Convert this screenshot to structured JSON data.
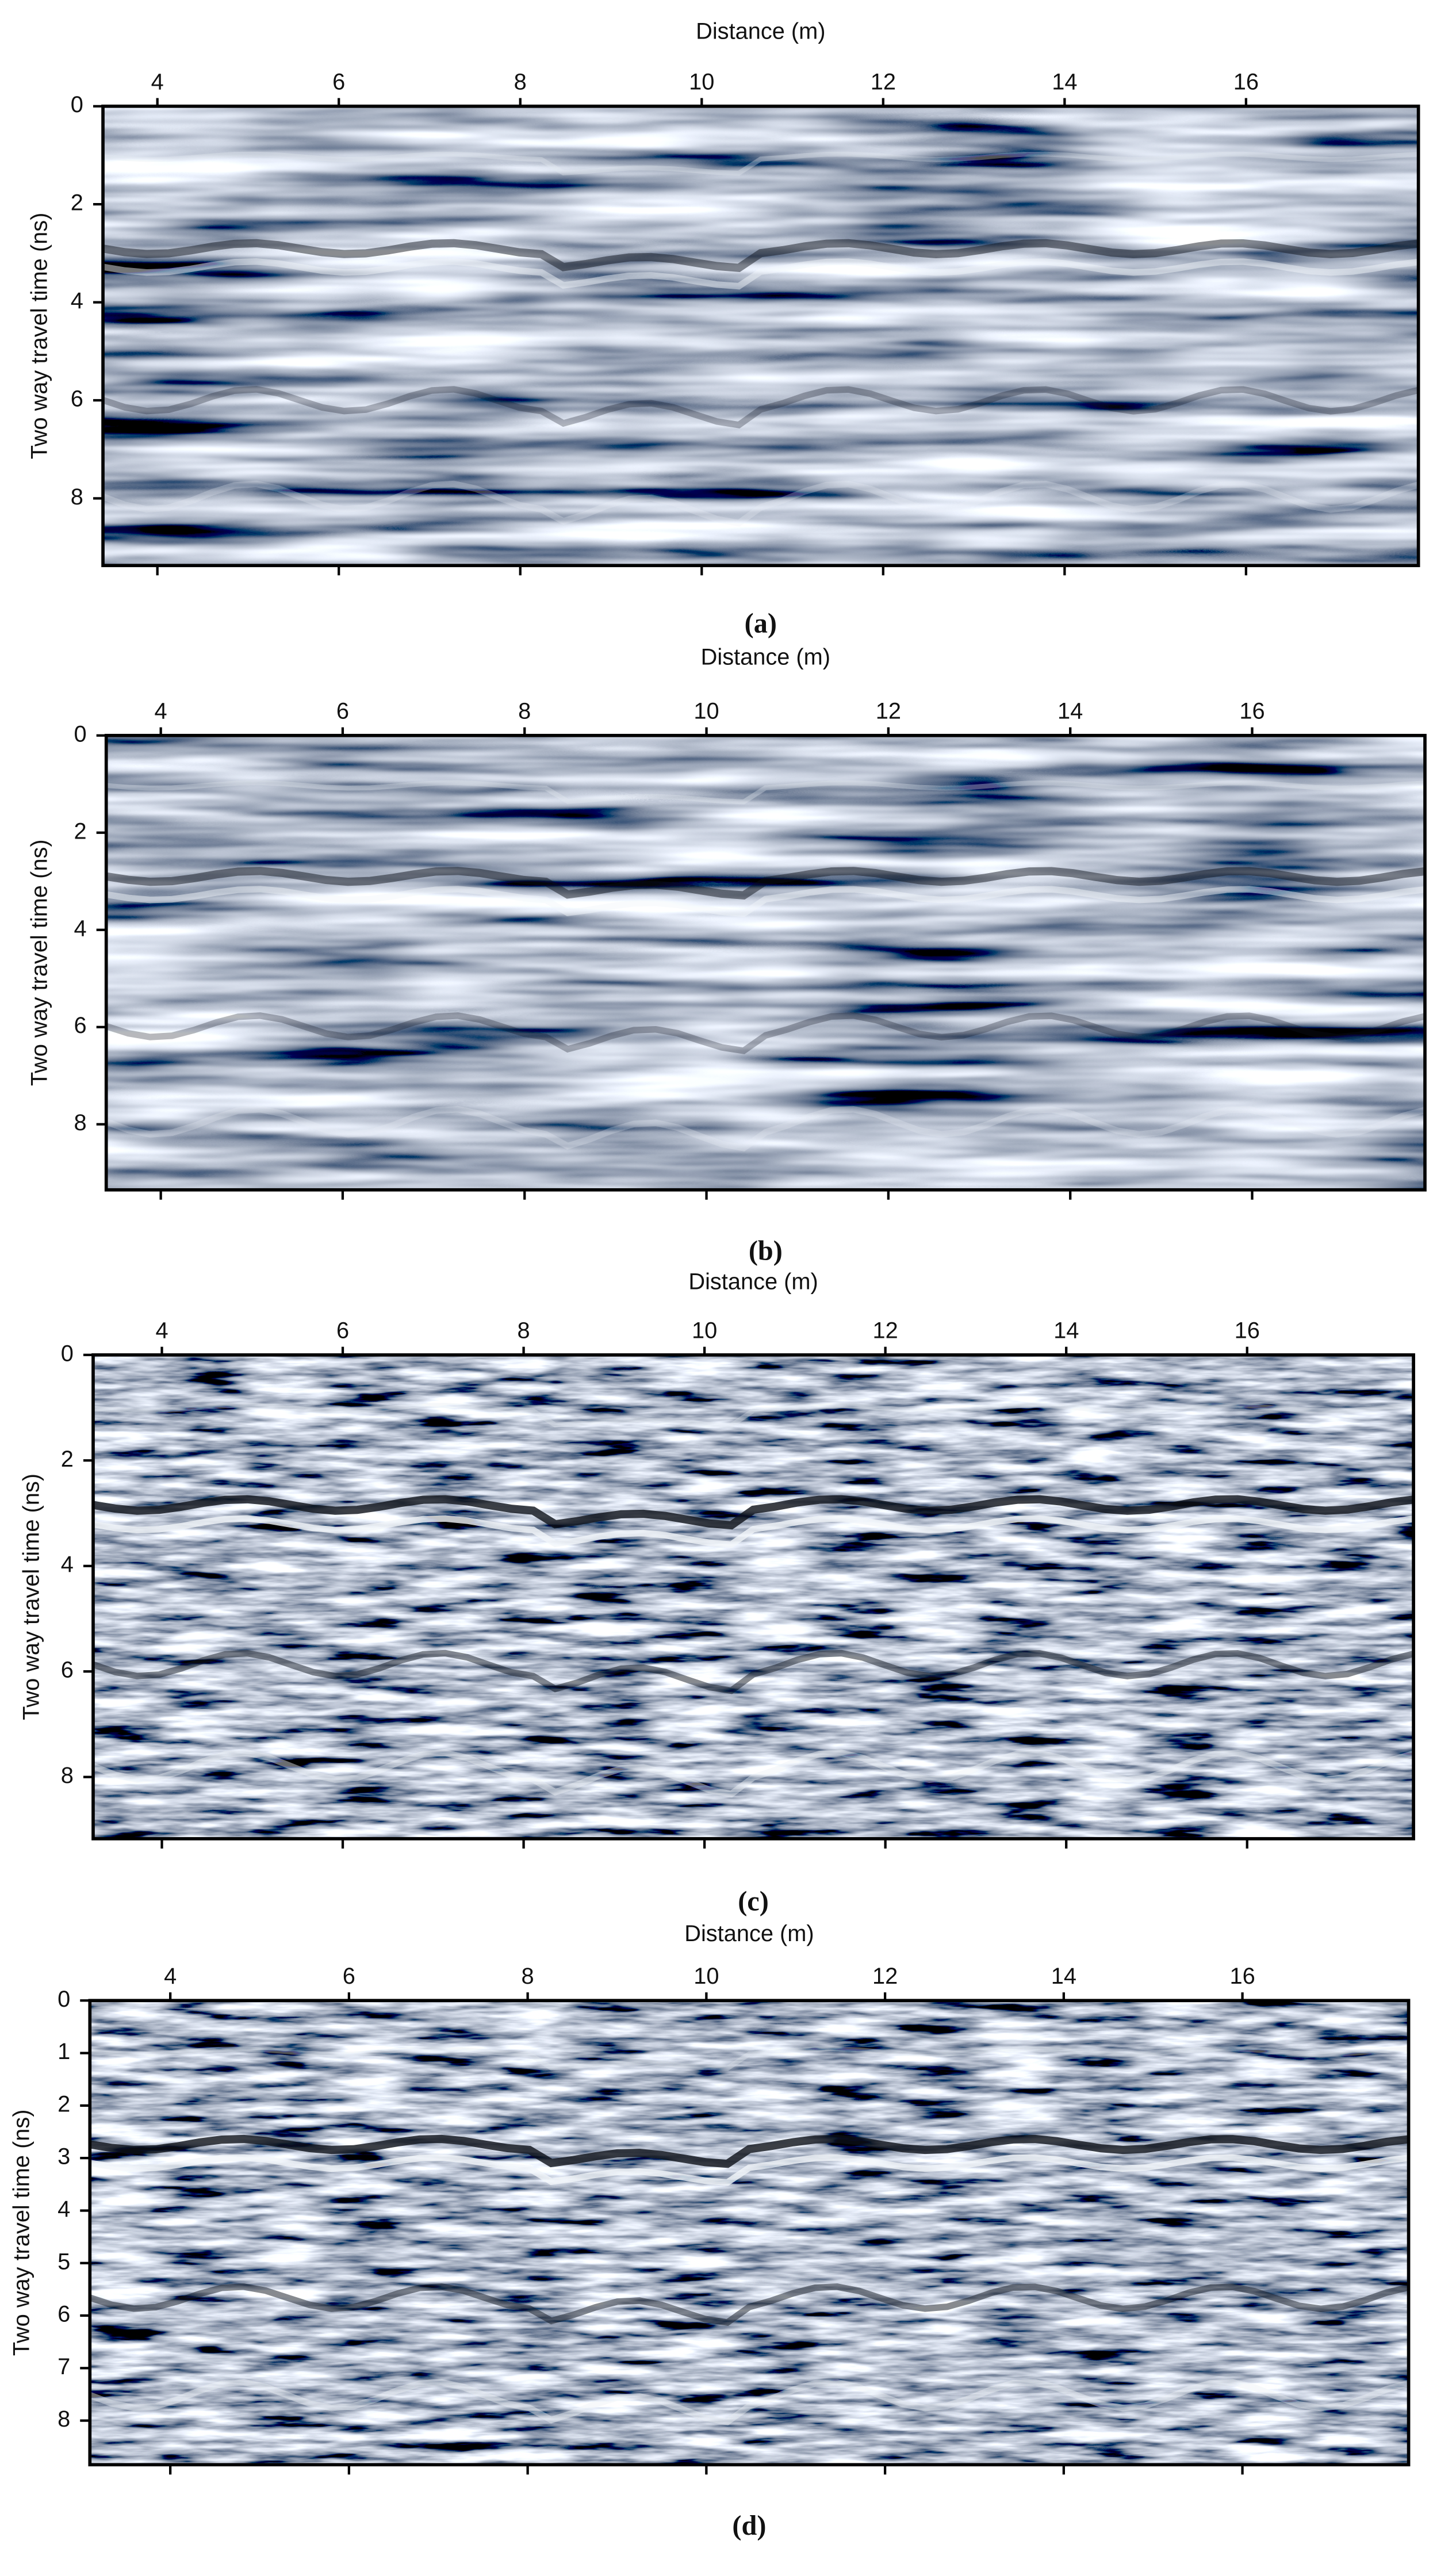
{
  "chart_data": [
    {
      "type": "radargram",
      "x_label": "Distance (m)",
      "y_label": "Two way travel time (ns)",
      "caption": "(a)",
      "xlim": [
        3.4,
        17.9
      ],
      "ylim": [
        0,
        9.37
      ],
      "xticks": [
        4,
        6,
        8,
        10,
        12,
        14,
        16
      ],
      "yticks": [
        0,
        2,
        4,
        6,
        8
      ]
    },
    {
      "type": "radargram",
      "x_label": "Distance (m)",
      "y_label": "Two way travel time (ns)",
      "caption": "(b)",
      "xlim": [
        3.4,
        17.9
      ],
      "ylim": [
        0,
        9.35
      ],
      "xticks": [
        4,
        6,
        8,
        10,
        12,
        14,
        16
      ],
      "yticks": [
        0,
        2,
        4,
        6,
        8
      ]
    },
    {
      "type": "radargram",
      "x_label": "Distance (m)",
      "y_label": "Two way travel time (ns)",
      "caption": "(c)",
      "xlim": [
        3.24,
        17.84
      ],
      "ylim": [
        0,
        9.17
      ],
      "xticks": [
        4,
        6,
        8,
        10,
        12,
        14,
        16
      ],
      "yticks": [
        0,
        2,
        4,
        6,
        8
      ]
    },
    {
      "type": "radargram",
      "x_label": "Distance (m)",
      "y_label": "Two way travel time (ns)",
      "caption": "(d)",
      "xlim": [
        3.1,
        17.86
      ],
      "ylim": [
        0,
        8.84
      ],
      "xticks": [
        4,
        6,
        8,
        10,
        12,
        14,
        16
      ],
      "yticks": [
        0,
        1,
        2,
        3,
        4,
        5,
        6,
        7,
        8
      ]
    }
  ]
}
